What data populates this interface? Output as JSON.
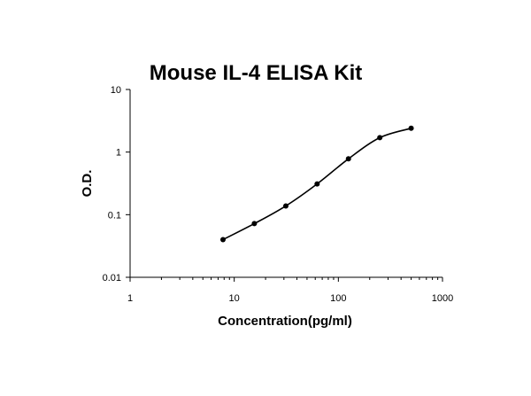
{
  "chart_data": {
    "type": "scatter",
    "title": "Mouse IL-4 ELISA Kit",
    "xlabel": "Concentration(pg/ml)",
    "ylabel": "O.D.",
    "x_scale": "log",
    "y_scale": "log",
    "xlim": [
      1,
      1000
    ],
    "ylim": [
      0.01,
      10
    ],
    "x_ticks": [
      {
        "value": 1,
        "label": "1"
      },
      {
        "value": 10,
        "label": "10"
      },
      {
        "value": 100,
        "label": "100"
      },
      {
        "value": 1000,
        "label": "1000"
      }
    ],
    "y_ticks": [
      {
        "value": 0.01,
        "label": "0.01"
      },
      {
        "value": 0.1,
        "label": "0.1"
      },
      {
        "value": 1,
        "label": "1"
      },
      {
        "value": 10,
        "label": "10"
      }
    ],
    "grid": false,
    "legend": "none",
    "fit_curve": true,
    "series": [
      {
        "x": [
          7.8,
          15.6,
          31.3,
          62.5,
          125,
          250,
          500
        ],
        "y": [
          0.04,
          0.072,
          0.138,
          0.31,
          0.78,
          1.7,
          2.4
        ]
      }
    ],
    "colors": {
      "line": "#000000",
      "marker": "#000000",
      "axis": "#000000"
    }
  }
}
